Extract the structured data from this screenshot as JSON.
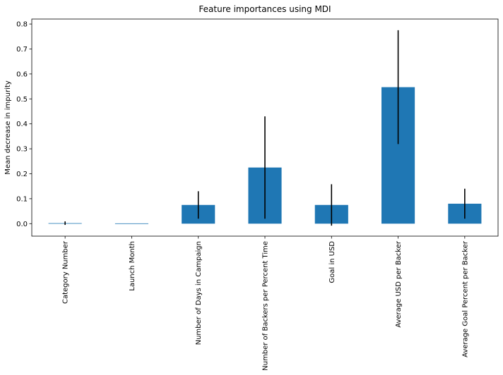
{
  "chart_data": {
    "type": "bar",
    "title": "Feature importances using MDI",
    "xlabel": "",
    "ylabel": "Mean decrease in impurity",
    "categories": [
      "Category Number",
      "Launch Month",
      "Number of Days in Campaign",
      "Number of Backers per Percent Time",
      "Goal in USD",
      "Average USD per Backer",
      "Average Goal Percent per Backer"
    ],
    "values": [
      0.002,
      0.0,
      0.075,
      0.225,
      0.075,
      0.547,
      0.08
    ],
    "errors": [
      0.007,
      0.0,
      0.055,
      0.205,
      0.083,
      0.228,
      0.06
    ],
    "ylim": [
      -0.05,
      0.82
    ],
    "yticks": [
      0.0,
      0.1,
      0.2,
      0.3,
      0.4,
      0.5,
      0.6,
      0.7,
      0.8
    ],
    "ytick_labels": [
      "0.0",
      "0.1",
      "0.2",
      "0.3",
      "0.4",
      "0.5",
      "0.6",
      "0.7",
      "0.8"
    ],
    "bar_color": "#1f77b4",
    "error_color": "#000000",
    "grid": false
  }
}
